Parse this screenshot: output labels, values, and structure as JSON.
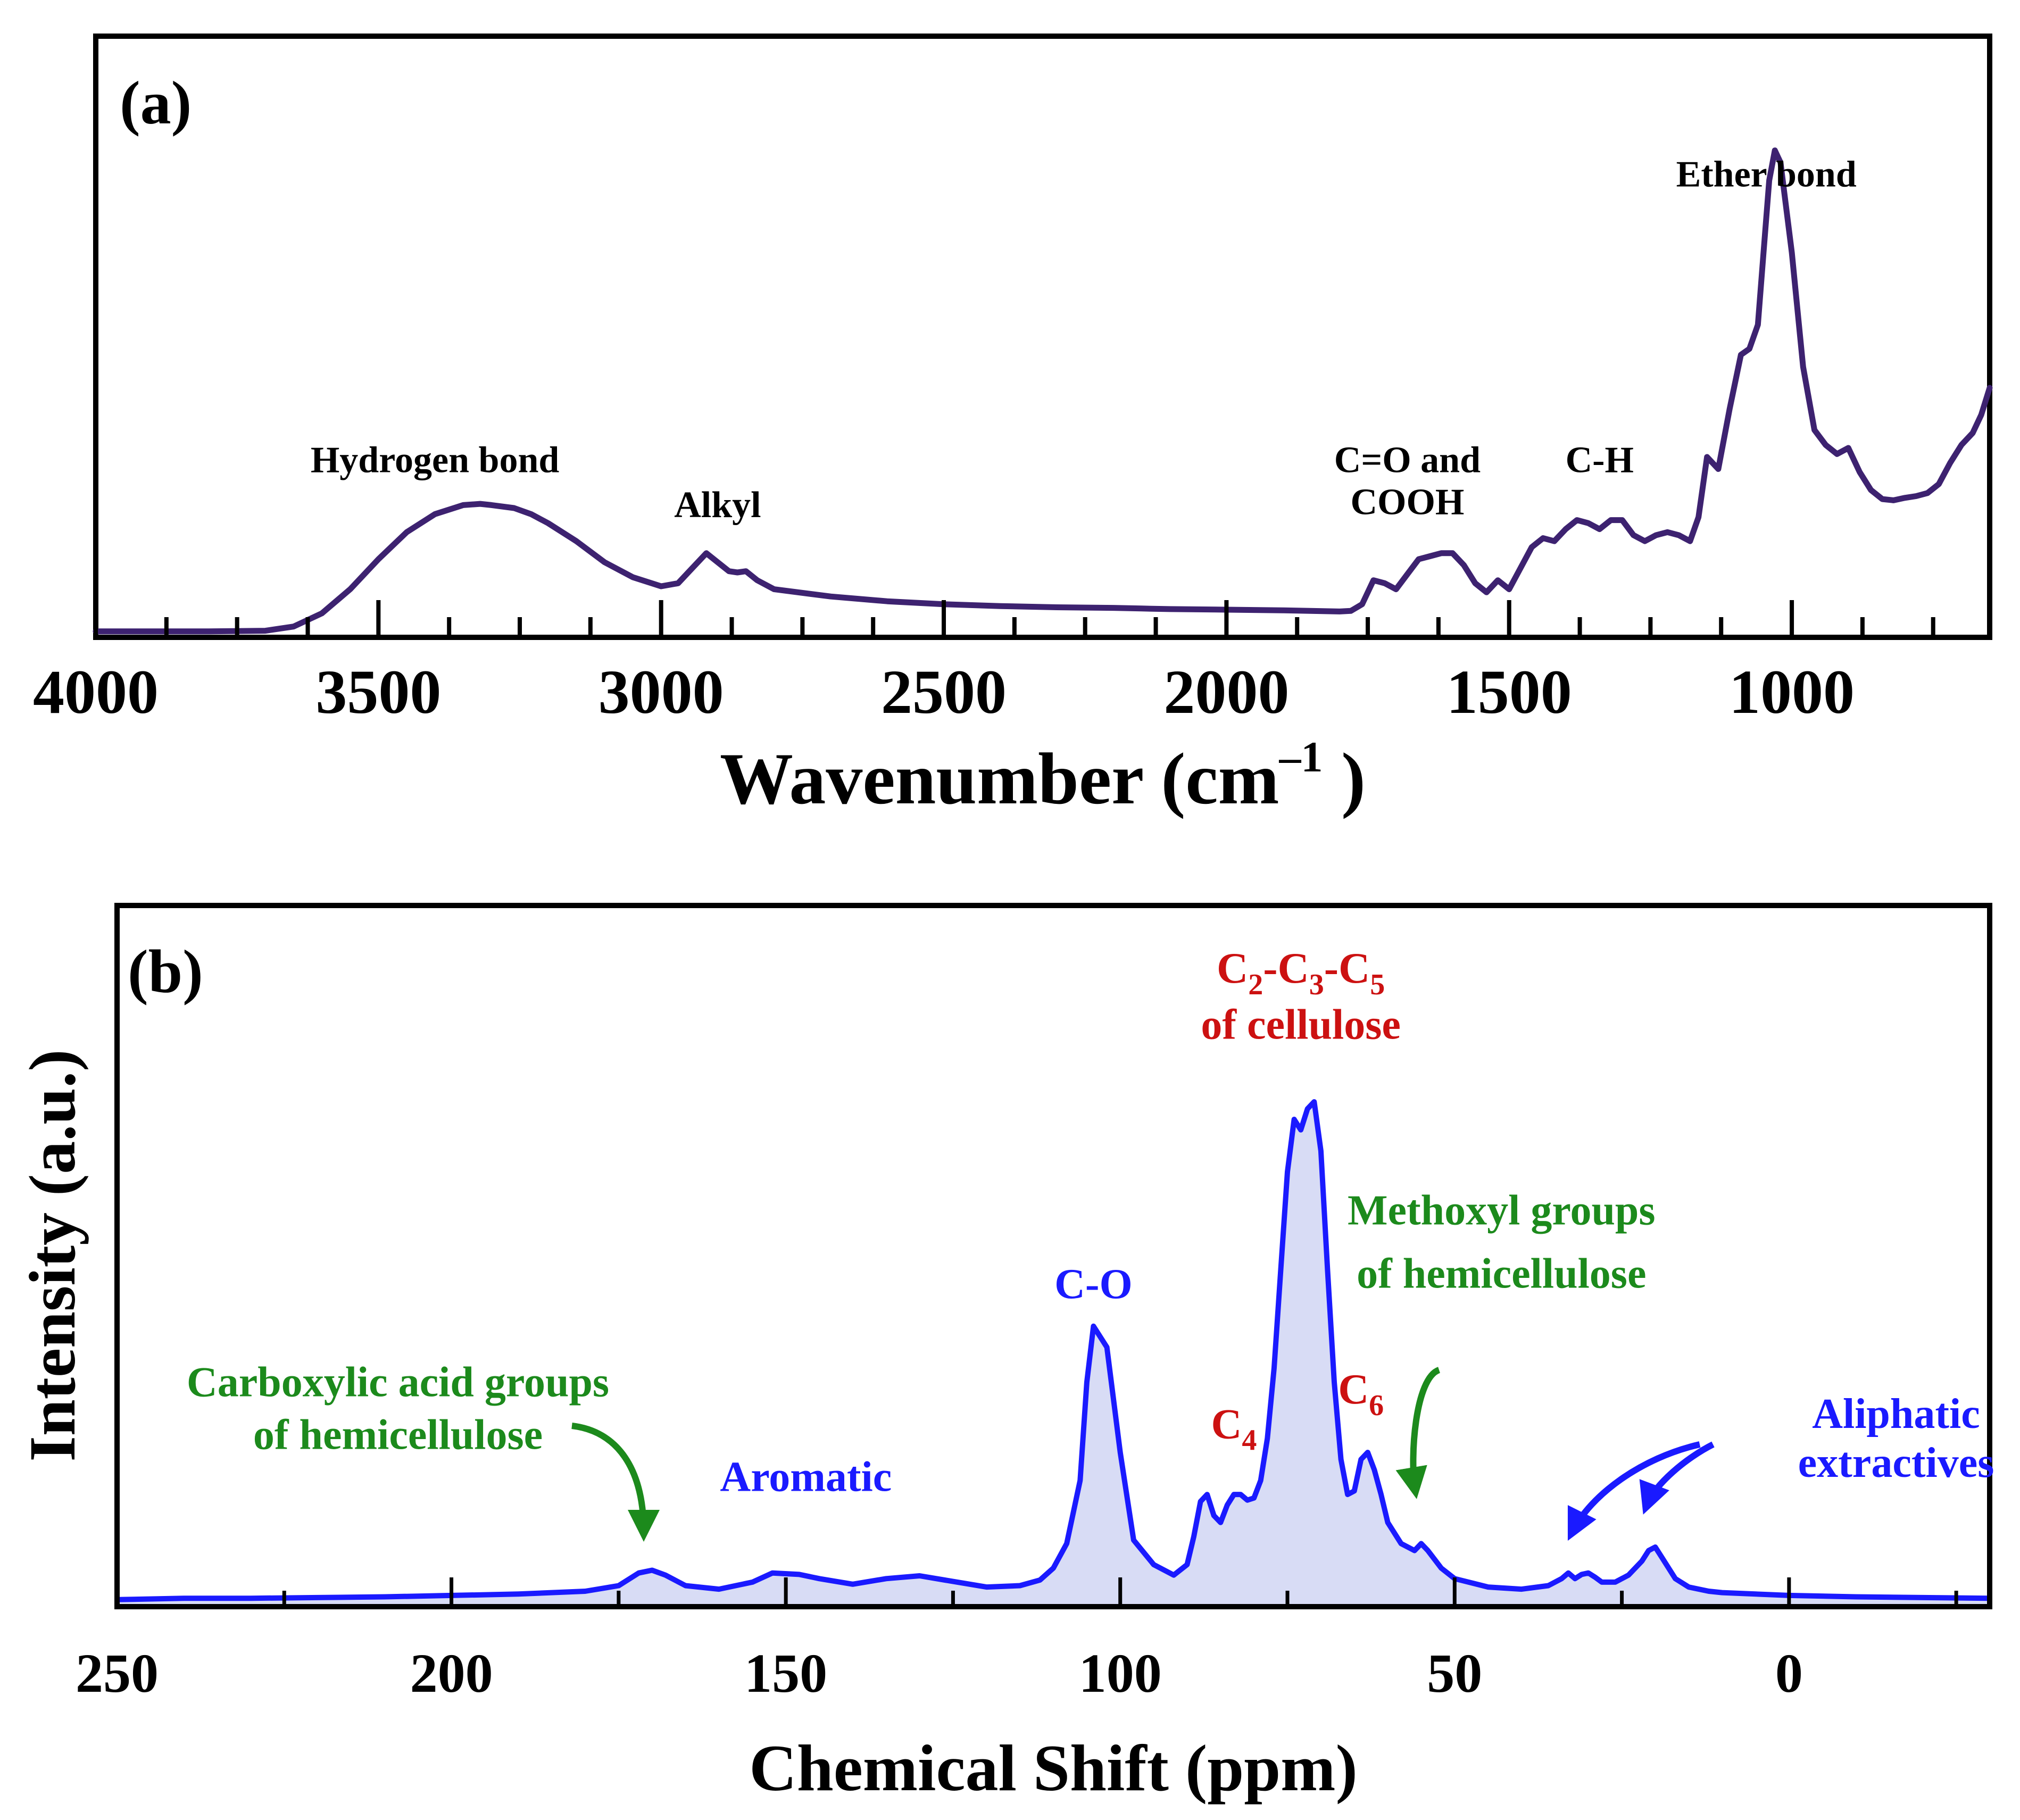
{
  "chart_data": [
    {
      "panel_label": "(a)",
      "type": "line",
      "xlabel_main": "Wavenumber (cm",
      "xlabel_sup": "–1",
      "xlabel_end": " )",
      "ylabel": "",
      "xlim": [
        4000,
        650
      ],
      "ylim": [
        0,
        1
      ],
      "reversed_x": true,
      "grid": false,
      "major_ticks": [
        4000,
        3500,
        3000,
        2500,
        2000,
        1500,
        1000
      ],
      "tick_labels": [
        "4000",
        "3500",
        "3000",
        "2500",
        "2000",
        "1500",
        "1000"
      ],
      "minor_ticks": [
        3875,
        3750,
        3625,
        3375,
        3250,
        3125,
        2875,
        2750,
        2625,
        2375,
        2250,
        2125,
        1875,
        1750,
        1625,
        1375,
        1250,
        1125,
        875,
        750
      ],
      "color": "#3d2270",
      "series": [
        {
          "x": [
            4000,
            3900,
            3800,
            3700,
            3650,
            3600,
            3550,
            3500,
            3450,
            3400,
            3350,
            3320,
            3300,
            3260,
            3230,
            3200,
            3150,
            3100,
            3050,
            3000,
            2970,
            2950,
            2920,
            2900,
            2880,
            2865,
            2850,
            2830,
            2800,
            2700,
            2600,
            2500,
            2400,
            2300,
            2200,
            2150,
            2100,
            2000,
            1900,
            1800,
            1780,
            1760,
            1740,
            1720,
            1700,
            1680,
            1660,
            1640,
            1620,
            1600,
            1580,
            1560,
            1540,
            1520,
            1500,
            1480,
            1460,
            1440,
            1420,
            1400,
            1380,
            1360,
            1340,
            1320,
            1300,
            1280,
            1260,
            1240,
            1220,
            1200,
            1180,
            1165,
            1150,
            1130,
            1110,
            1090,
            1075,
            1060,
            1050,
            1040,
            1030,
            1020,
            1000,
            980,
            960,
            940,
            920,
            900,
            880,
            860,
            840,
            820,
            800,
            780,
            760,
            740,
            720,
            700,
            680,
            665,
            650
          ],
          "y": [
            0.01,
            0.01,
            0.01,
            0.011,
            0.018,
            0.04,
            0.08,
            0.13,
            0.175,
            0.205,
            0.22,
            0.222,
            0.22,
            0.215,
            0.205,
            0.19,
            0.16,
            0.125,
            0.1,
            0.085,
            0.09,
            0.11,
            0.14,
            0.125,
            0.11,
            0.108,
            0.11,
            0.095,
            0.08,
            0.068,
            0.06,
            0.055,
            0.052,
            0.05,
            0.049,
            0.048,
            0.047,
            0.046,
            0.045,
            0.043,
            0.044,
            0.055,
            0.095,
            0.09,
            0.08,
            0.105,
            0.13,
            0.135,
            0.14,
            0.14,
            0.12,
            0.09,
            0.075,
            0.095,
            0.08,
            0.115,
            0.15,
            0.165,
            0.16,
            0.18,
            0.195,
            0.19,
            0.18,
            0.195,
            0.195,
            0.17,
            0.16,
            0.17,
            0.175,
            0.17,
            0.16,
            0.2,
            0.3,
            0.28,
            0.38,
            0.47,
            0.48,
            0.52,
            0.64,
            0.76,
            0.81,
            0.79,
            0.64,
            0.45,
            0.345,
            0.32,
            0.305,
            0.315,
            0.275,
            0.245,
            0.23,
            0.228,
            0.232,
            0.235,
            0.24,
            0.255,
            0.29,
            0.32,
            0.34,
            0.37,
            0.415
          ]
        }
      ],
      "annotations": [
        {
          "text": "Hydrogen bond",
          "x": 3400,
          "y": 0.275
        },
        {
          "text": "Alkyl",
          "x": 2900,
          "y": 0.2
        },
        {
          "text": "C=O and",
          "x": 1680,
          "y": 0.275
        },
        {
          "text": "COOH",
          "x": 1680,
          "y": 0.205
        },
        {
          "text": "C-H",
          "x": 1340,
          "y": 0.275
        },
        {
          "text": "Ether bond",
          "x": 1045,
          "y": 0.75
        }
      ]
    },
    {
      "panel_label": "(b)",
      "type": "area",
      "xlabel": "Chemical Shift (ppm)",
      "ylabel": "Intensity (a.u.)",
      "xlim": [
        250,
        -30
      ],
      "ylim": [
        0,
        1
      ],
      "reversed_x": true,
      "grid": false,
      "major_ticks": [
        250,
        200,
        150,
        100,
        50,
        0
      ],
      "tick_labels": [
        "250",
        "200",
        "150",
        "100",
        "50",
        "0"
      ],
      "minor_ticks": [
        225,
        175,
        125,
        75,
        25,
        -25
      ],
      "color": "#1a1aff",
      "fill_color": "#d8dcf5",
      "series": [
        {
          "x": [
            250,
            240,
            230,
            220,
            210,
            200,
            190,
            180,
            175,
            172,
            170,
            168,
            165,
            160,
            155,
            152,
            148,
            145,
            140,
            135,
            130,
            125,
            120,
            115,
            112,
            110,
            108,
            106,
            105,
            104,
            102,
            100,
            98,
            95,
            92,
            90,
            89,
            88,
            87,
            86,
            85,
            84,
            83,
            82,
            81,
            80,
            79,
            78,
            77,
            76,
            75,
            74,
            73,
            72,
            71,
            70,
            69,
            68,
            67,
            66,
            65,
            64,
            63,
            62,
            61,
            60,
            58,
            56,
            55,
            54,
            52,
            50,
            45,
            40,
            36,
            34,
            33,
            32,
            31,
            30,
            29,
            28,
            26,
            24,
            22,
            21,
            20,
            19,
            17,
            15,
            12,
            10,
            5,
            0,
            -10,
            -20,
            -30
          ],
          "y": [
            0.01,
            0.012,
            0.012,
            0.013,
            0.014,
            0.016,
            0.018,
            0.022,
            0.03,
            0.048,
            0.052,
            0.045,
            0.03,
            0.025,
            0.035,
            0.048,
            0.046,
            0.04,
            0.032,
            0.04,
            0.044,
            0.036,
            0.028,
            0.03,
            0.038,
            0.055,
            0.09,
            0.18,
            0.32,
            0.4,
            0.37,
            0.22,
            0.095,
            0.06,
            0.045,
            0.06,
            0.1,
            0.15,
            0.16,
            0.13,
            0.12,
            0.145,
            0.16,
            0.16,
            0.152,
            0.155,
            0.18,
            0.24,
            0.34,
            0.48,
            0.62,
            0.695,
            0.68,
            0.71,
            0.72,
            0.65,
            0.48,
            0.32,
            0.21,
            0.16,
            0.165,
            0.21,
            0.22,
            0.195,
            0.16,
            0.12,
            0.09,
            0.08,
            0.09,
            0.08,
            0.055,
            0.04,
            0.028,
            0.025,
            0.03,
            0.04,
            0.048,
            0.04,
            0.046,
            0.048,
            0.042,
            0.035,
            0.035,
            0.045,
            0.065,
            0.08,
            0.085,
            0.07,
            0.04,
            0.028,
            0.022,
            0.02,
            0.018,
            0.016,
            0.014,
            0.013,
            0.012
          ]
        }
      ],
      "annotations": [
        {
          "text": "Carboxylic acid groups",
          "x": 208,
          "y": 0.3,
          "color": "#1c8a1c"
        },
        {
          "text": "of hemicellulose",
          "x": 208,
          "y": 0.225,
          "color": "#1c8a1c"
        },
        {
          "text": "Aromatic",
          "x": 147,
          "y": 0.165,
          "color": "#1a1aff"
        },
        {
          "text": "C-O",
          "x": 104,
          "y": 0.44,
          "color": "#1a1aff"
        },
        {
          "text": "C",
          "sub": "4",
          "x": 83,
          "y": 0.24,
          "color": "#cc1111"
        },
        {
          "text": "C",
          "sub": "6",
          "x": 64,
          "y": 0.29,
          "color": "#cc1111"
        },
        {
          "text": "of cellulose",
          "x": 73,
          "y": 0.81,
          "color": "#cc1111"
        },
        {
          "text": "Methoxyl groups",
          "x": 43,
          "y": 0.545,
          "color": "#1c8a1c"
        },
        {
          "text": "of hemicellulose",
          "x": 43,
          "y": 0.455,
          "color": "#1c8a1c"
        },
        {
          "text": "Aliphatic",
          "x": -16,
          "y": 0.255,
          "color": "#1a1aff"
        },
        {
          "text": "extractives",
          "x": -16,
          "y": 0.185,
          "color": "#1a1aff"
        }
      ],
      "composite_label": {
        "parts": [
          "C",
          "2",
          "-C",
          "3",
          "-C",
          "5"
        ],
        "x": 73,
        "y": 0.89,
        "color": "#cc1111"
      }
    }
  ]
}
